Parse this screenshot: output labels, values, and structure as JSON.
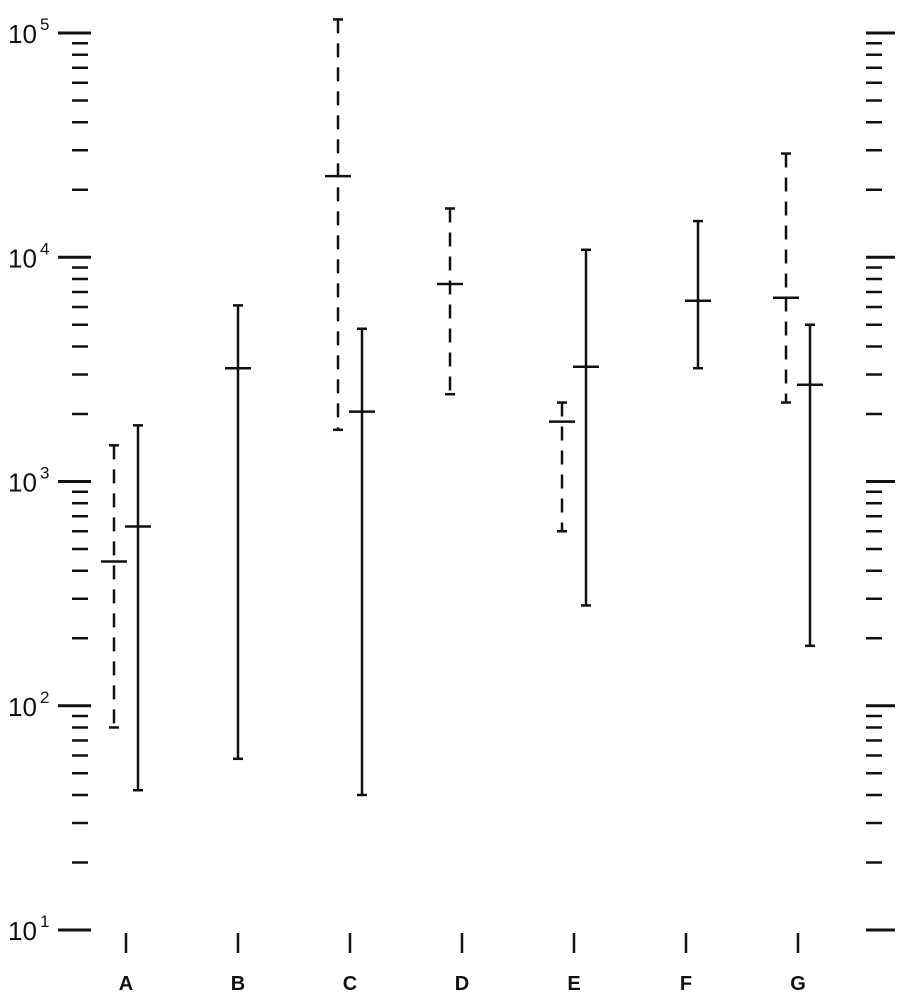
{
  "chart_data": {
    "type": "range",
    "title": "",
    "xlabel": "",
    "ylabel": "",
    "y_scale": "log",
    "ylim": [
      10,
      100000
    ],
    "y_tick_labels": [
      {
        "base": "10",
        "exp": "1",
        "value": 10
      },
      {
        "base": "10",
        "exp": "2",
        "value": 100
      },
      {
        "base": "10",
        "exp": "3",
        "value": 1000
      },
      {
        "base": "10",
        "exp": "4",
        "value": 10000
      },
      {
        "base": "10",
        "exp": "5",
        "value": 100000
      }
    ],
    "right_axis": "mirrored log ticks, unlabeled",
    "grid": false,
    "legend": "none",
    "categories": [
      "A",
      "B",
      "C",
      "D",
      "E",
      "F",
      "G"
    ],
    "series": [
      {
        "style": "dashed",
        "points": [
          {
            "category": "A",
            "low": 80,
            "mid": 440,
            "high": 1450
          },
          {
            "category": "C",
            "low": 1700,
            "mid": 23000,
            "high": 115000
          },
          {
            "category": "D",
            "low": 2450,
            "mid": 7600,
            "high": 16500
          },
          {
            "category": "E",
            "low": 600,
            "mid": 1850,
            "high": 2250
          },
          {
            "category": "G",
            "low": 2250,
            "mid": 6600,
            "high": 29000
          }
        ]
      },
      {
        "style": "solid",
        "points": [
          {
            "category": "A",
            "low": 42,
            "mid": 630,
            "high": 1780
          },
          {
            "category": "B",
            "low": 58,
            "mid": 3200,
            "high": 6100
          },
          {
            "category": "C",
            "low": 40,
            "mid": 2050,
            "high": 4800
          },
          {
            "category": "E",
            "low": 280,
            "mid": 3250,
            "high": 10800
          },
          {
            "category": "F",
            "low": 3200,
            "mid": 6400,
            "high": 14500
          },
          {
            "category": "G",
            "low": 185,
            "mid": 2700,
            "high": 5000
          }
        ]
      }
    ]
  }
}
